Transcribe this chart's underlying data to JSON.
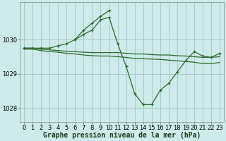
{
  "xlabel": "Graphe pression niveau de la mer (hPa)",
  "bg_color": "#ceeaea",
  "grid_color": "#a8cccc",
  "line_color": "#2d6b2d",
  "marker_color": "#2d6b2d",
  "xlim": [
    -0.5,
    23.5
  ],
  "ylim": [
    1027.6,
    1031.1
  ],
  "yticks": [
    1028,
    1029,
    1030
  ],
  "xticks": [
    0,
    1,
    2,
    3,
    4,
    5,
    6,
    7,
    8,
    9,
    10,
    11,
    12,
    13,
    14,
    15,
    16,
    17,
    18,
    19,
    20,
    21,
    22,
    23
  ],
  "series": [
    {
      "x": [
        0,
        1,
        2,
        3,
        4,
        5,
        6,
        7,
        8,
        9,
        10
      ],
      "y": [
        1029.75,
        1029.75,
        1029.75,
        1029.75,
        1029.82,
        1029.88,
        1030.0,
        1030.28,
        1030.48,
        1030.68,
        1030.85
      ],
      "markers": true
    },
    {
      "x": [
        6,
        7,
        8,
        9,
        10,
        11,
        12,
        13,
        14,
        15,
        16,
        17,
        18,
        19,
        20,
        21,
        22,
        23
      ],
      "y": [
        1030.0,
        1030.15,
        1030.28,
        1030.58,
        1030.65,
        1029.88,
        1029.22,
        1028.42,
        1028.1,
        1028.1,
        1028.52,
        1028.72,
        1029.05,
        1029.38,
        1029.65,
        1029.52,
        1029.48,
        1029.6
      ],
      "markers": true
    },
    {
      "x": [
        0,
        1,
        2,
        3,
        4,
        5,
        6,
        7,
        8,
        9,
        10,
        11,
        12,
        13,
        14,
        15,
        16,
        17,
        18,
        19,
        20,
        21,
        22,
        23
      ],
      "y": [
        1029.75,
        1029.75,
        1029.72,
        1029.7,
        1029.68,
        1029.66,
        1029.65,
        1029.63,
        1029.62,
        1029.62,
        1029.62,
        1029.62,
        1029.6,
        1029.58,
        1029.58,
        1029.56,
        1029.55,
        1029.55,
        1029.53,
        1029.52,
        1029.5,
        1029.48,
        1029.48,
        1029.5
      ],
      "markers": false
    },
    {
      "x": [
        0,
        1,
        2,
        3,
        4,
        5,
        6,
        7,
        8,
        9,
        10,
        11,
        12,
        13,
        14,
        15,
        16,
        17,
        18,
        19,
        20,
        21,
        22,
        23
      ],
      "y": [
        1029.72,
        1029.72,
        1029.68,
        1029.65,
        1029.63,
        1029.6,
        1029.58,
        1029.55,
        1029.53,
        1029.52,
        1029.52,
        1029.5,
        1029.48,
        1029.45,
        1029.44,
        1029.43,
        1029.42,
        1029.4,
        1029.38,
        1029.36,
        1029.34,
        1029.3,
        1029.3,
        1029.33
      ],
      "markers": false
    }
  ],
  "fontsize_xlabel": 7,
  "tick_fontsize": 6
}
